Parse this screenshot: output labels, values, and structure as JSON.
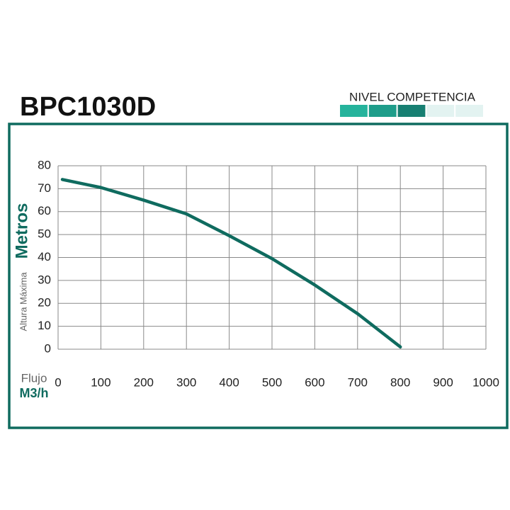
{
  "chart_data": {
    "type": "line",
    "title": "BPC1030D",
    "y_label_main": "Metros",
    "y_label_sub": "Altura Máxima",
    "x_label_sub": "Flujo",
    "x_label_main": "M3/h",
    "level": {
      "label": "NIVEL COMPETENCIA",
      "value": 3,
      "max": 5
    },
    "x": [
      10,
      100,
      200,
      300,
      400,
      500,
      600,
      700,
      800
    ],
    "series": [
      {
        "name": "BPC1030D",
        "color": "#0f6b5f",
        "values": [
          74,
          70.5,
          65,
          59,
          49.5,
          39.5,
          28,
          15.5,
          1
        ]
      }
    ],
    "xlim": [
      0,
      1000
    ],
    "xticks": [
      0,
      100,
      200,
      300,
      400,
      500,
      600,
      700,
      800,
      900,
      1000
    ],
    "ylim": [
      0,
      80
    ],
    "yticks": [
      0,
      10,
      20,
      30,
      40,
      50,
      60,
      70,
      80
    ],
    "grid": true
  }
}
